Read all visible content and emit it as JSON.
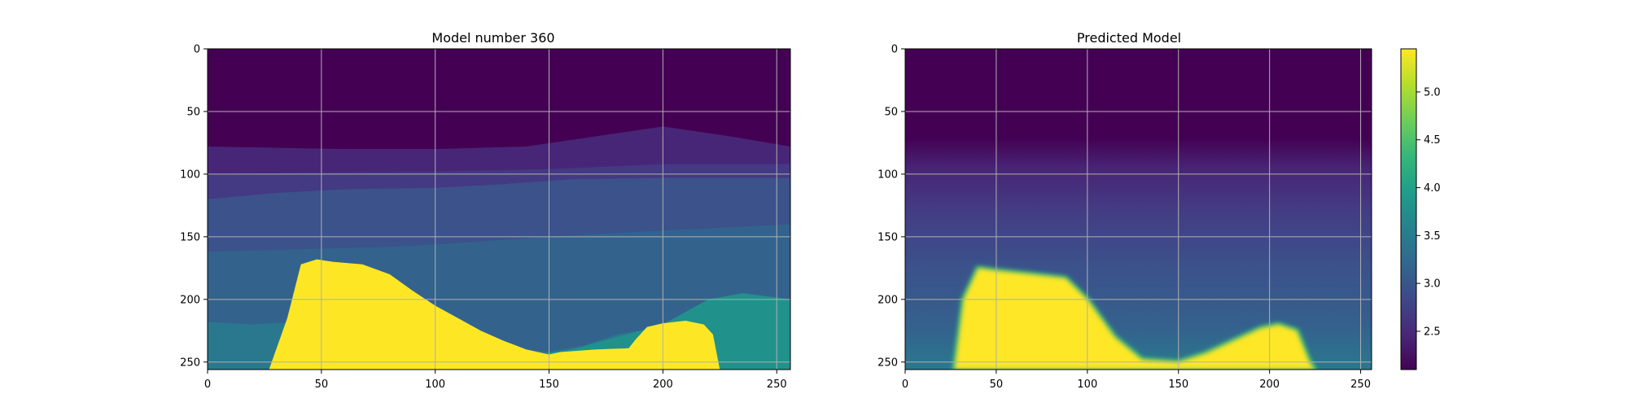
{
  "chart_data": [
    {
      "type": "heatmap",
      "title": "Model number 360",
      "xlabel": "",
      "ylabel": "",
      "x_range": [
        0,
        256
      ],
      "y_range": [
        256,
        0
      ],
      "x_ticks": [
        0,
        50,
        100,
        150,
        200,
        250
      ],
      "y_ticks": [
        0,
        50,
        100,
        150,
        200,
        250
      ],
      "grid": true,
      "colormap": "viridis",
      "layer_colors": [
        "#440154",
        "#482677",
        "#443983",
        "#3b528b",
        "#33638d",
        "#2a788e",
        "#21918c"
      ],
      "salt_color": "#fde725",
      "layers": [
        {
          "name": "water",
          "value": 2.1,
          "x": [
            0,
            256
          ],
          "y_top": [
            0,
            0
          ]
        },
        {
          "name": "layer-1",
          "value": 2.5,
          "x": [
            0,
            60,
            100,
            140,
            170,
            200,
            230,
            256
          ],
          "y_top": [
            78,
            80,
            80,
            78,
            70,
            62,
            70,
            78
          ]
        },
        {
          "name": "layer-2",
          "value": 2.75,
          "x": [
            0,
            40,
            100,
            150,
            200,
            256
          ],
          "y_top": [
            100,
            99,
            98,
            96,
            92,
            92
          ]
        },
        {
          "name": "layer-3",
          "value": 2.95,
          "x": [
            0,
            30,
            60,
            100,
            130,
            160,
            200,
            256
          ],
          "y_top": [
            120,
            115,
            112,
            111,
            108,
            104,
            103,
            103
          ]
        },
        {
          "name": "layer-4",
          "value": 3.15,
          "x": [
            0,
            40,
            80,
            110,
            150,
            200,
            256
          ],
          "y_top": [
            162,
            160,
            158,
            155,
            150,
            145,
            140
          ]
        },
        {
          "name": "layer-5",
          "value": 3.5,
          "x": [
            0,
            20,
            40,
            150,
            165,
            180,
            200,
            225,
            256
          ],
          "y_top": [
            218,
            220,
            218,
            242,
            237,
            228,
            222,
            220,
            218
          ]
        },
        {
          "name": "layer-6",
          "value": 3.75,
          "x": [
            0,
            20,
            100,
            160,
            200,
            220,
            235,
            256
          ],
          "y_top": [
            256,
            256,
            256,
            240,
            220,
            200,
            195,
            200
          ]
        }
      ],
      "salt": {
        "value": 5.4,
        "x": [
          27,
          35,
          41,
          48,
          55,
          68,
          80,
          90,
          100,
          110,
          120,
          130,
          140,
          150,
          155,
          170,
          185,
          188,
          193,
          200,
          210,
          218,
          222,
          225
        ],
        "y_top": [
          256,
          215,
          172,
          168,
          170,
          172,
          180,
          193,
          205,
          215,
          225,
          233,
          240,
          244,
          242,
          240,
          239,
          232,
          222,
          219,
          217,
          220,
          228,
          256
        ]
      }
    },
    {
      "type": "heatmap",
      "title": "Predicted Model",
      "xlabel": "",
      "ylabel": "",
      "x_range": [
        0,
        256
      ],
      "y_range": [
        256,
        0
      ],
      "x_ticks": [
        0,
        50,
        100,
        150,
        200,
        250
      ],
      "y_ticks": [
        0,
        50,
        100,
        150,
        200,
        250
      ],
      "grid": true,
      "colormap": "viridis",
      "background_gradient": [
        {
          "depth": 0,
          "color": "#440154"
        },
        {
          "depth": 72,
          "color": "#440154"
        },
        {
          "depth": 95,
          "color": "#482475"
        },
        {
          "depth": 130,
          "color": "#433d84"
        },
        {
          "depth": 175,
          "color": "#3b528b"
        },
        {
          "depth": 220,
          "color": "#35608d"
        },
        {
          "depth": 256,
          "color": "#2a788e"
        }
      ],
      "salt_color": "#fde725",
      "salt": {
        "value": 5.3,
        "x": [
          27,
          32,
          40,
          50,
          70,
          88,
          100,
          115,
          130,
          150,
          165,
          180,
          195,
          205,
          215,
          222,
          225
        ],
        "y_top": [
          256,
          200,
          175,
          177,
          180,
          183,
          200,
          230,
          248,
          250,
          243,
          233,
          223,
          220,
          225,
          250,
          256
        ]
      },
      "colorbar": {
        "min": 2.1,
        "max": 5.45,
        "ticks": [
          "2.5",
          "3.0",
          "3.5",
          "4.0",
          "4.5",
          "5.0"
        ],
        "stops": [
          "#440154",
          "#482878",
          "#3e4989",
          "#31688e",
          "#26828e",
          "#1f9e89",
          "#35b779",
          "#6ece58",
          "#b5de2b",
          "#fde725"
        ]
      }
    }
  ]
}
